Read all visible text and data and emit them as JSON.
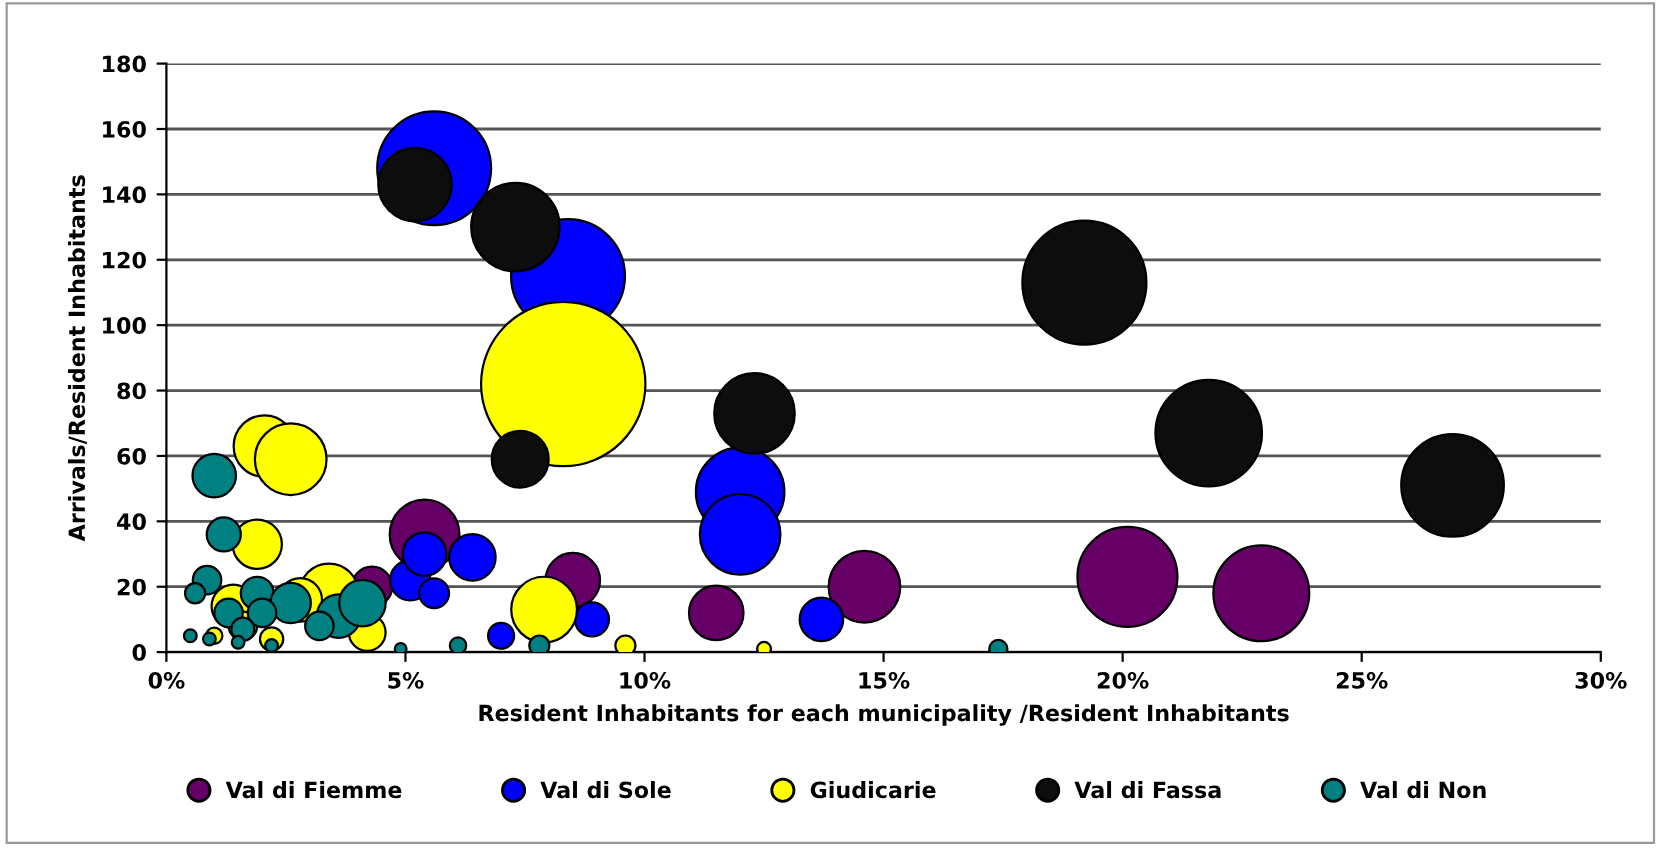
{
  "chart_data": {
    "type": "bubble",
    "xlabel": "Resident Inhabitants for each municipality /Resident Inhabitants",
    "ylabel": "Arrivals/Resident Inhabitants",
    "xlim": [
      0,
      30
    ],
    "xticks": [
      {
        "value": 0,
        "label": "0%"
      },
      {
        "value": 5,
        "label": "5%"
      },
      {
        "value": 10,
        "label": "10%"
      },
      {
        "value": 15,
        "label": "15%"
      },
      {
        "value": 20,
        "label": "20%"
      },
      {
        "value": 25,
        "label": "25%"
      },
      {
        "value": 30,
        "label": "30%"
      }
    ],
    "ylim": [
      0,
      180
    ],
    "yticks": [
      0,
      20,
      40,
      60,
      80,
      100,
      120,
      140,
      160,
      180
    ],
    "grid": "y",
    "legend": "bottom",
    "series": [
      {
        "name": "Val di Fiemme",
        "color": "#660066",
        "x": [
          5.4,
          8.5,
          11.5,
          14.6,
          20.1,
          22.9,
          4.3
        ],
        "values": [
          36,
          22,
          12,
          20,
          23,
          18,
          20
        ],
        "sizes": [
          0.18,
          0.11,
          0.11,
          0.19,
          0.37,
          0.34,
          0.06
        ]
      },
      {
        "name": "Val di Sole",
        "color": "#0000ff",
        "x": [
          5.6,
          8.4,
          12.0,
          12.0,
          13.7,
          5.1,
          5.6,
          5.4,
          6.4,
          7.0,
          8.9
        ],
        "values": [
          148,
          115,
          49,
          36,
          10,
          22,
          18,
          30,
          29,
          5,
          10
        ],
        "sizes": [
          0.48,
          0.48,
          0.29,
          0.24,
          0.07,
          0.06,
          0.033,
          0.07,
          0.08,
          0.025,
          0.043
        ]
      },
      {
        "name": "Giudicarie",
        "color": "#ffff00",
        "x": [
          8.3,
          2.05,
          2.6,
          1.9,
          3.4,
          2.8,
          7.9,
          9.6,
          12.5,
          1.4,
          1.0,
          4.2,
          1.6,
          2.2
        ],
        "values": [
          82,
          63,
          59,
          33,
          18,
          16,
          13,
          2,
          1,
          14,
          5,
          6,
          8,
          4
        ],
        "sizes": [
          1,
          0.14,
          0.19,
          0.09,
          0.13,
          0.07,
          0.16,
          0.015,
          0.007,
          0.07,
          0.01,
          0.05,
          0.03,
          0.02
        ]
      },
      {
        "name": "Val di Fassa",
        "color": "#0d0d0d",
        "x": [
          5.2,
          7.3,
          12.3,
          7.4,
          19.2,
          21.8,
          26.9
        ],
        "values": [
          143,
          130,
          73,
          59,
          113,
          67,
          51
        ],
        "sizes": [
          0.2,
          0.29,
          0.24,
          0.12,
          0.57,
          0.42,
          0.39
        ]
      },
      {
        "name": "Val di Non",
        "color": "#008080",
        "x": [
          1.0,
          1.2,
          0.85,
          0.6,
          1.9,
          2.6,
          3.6,
          4.1,
          1.3,
          2.0,
          1.6,
          0.5,
          0.9,
          1.5,
          2.2,
          4.9,
          6.1,
          7.8,
          17.4,
          3.2
        ],
        "values": [
          54,
          36,
          22,
          18,
          18,
          15,
          11,
          15,
          12,
          12,
          7,
          5,
          4,
          3,
          2,
          1,
          2,
          2,
          1,
          8
        ],
        "sizes": [
          0.07,
          0.043,
          0.03,
          0.015,
          0.04,
          0.06,
          0.07,
          0.08,
          0.03,
          0.03,
          0.02,
          0.006,
          0.006,
          0.006,
          0.006,
          0.005,
          0.01,
          0.015,
          0.012,
          0.03
        ]
      }
    ]
  }
}
